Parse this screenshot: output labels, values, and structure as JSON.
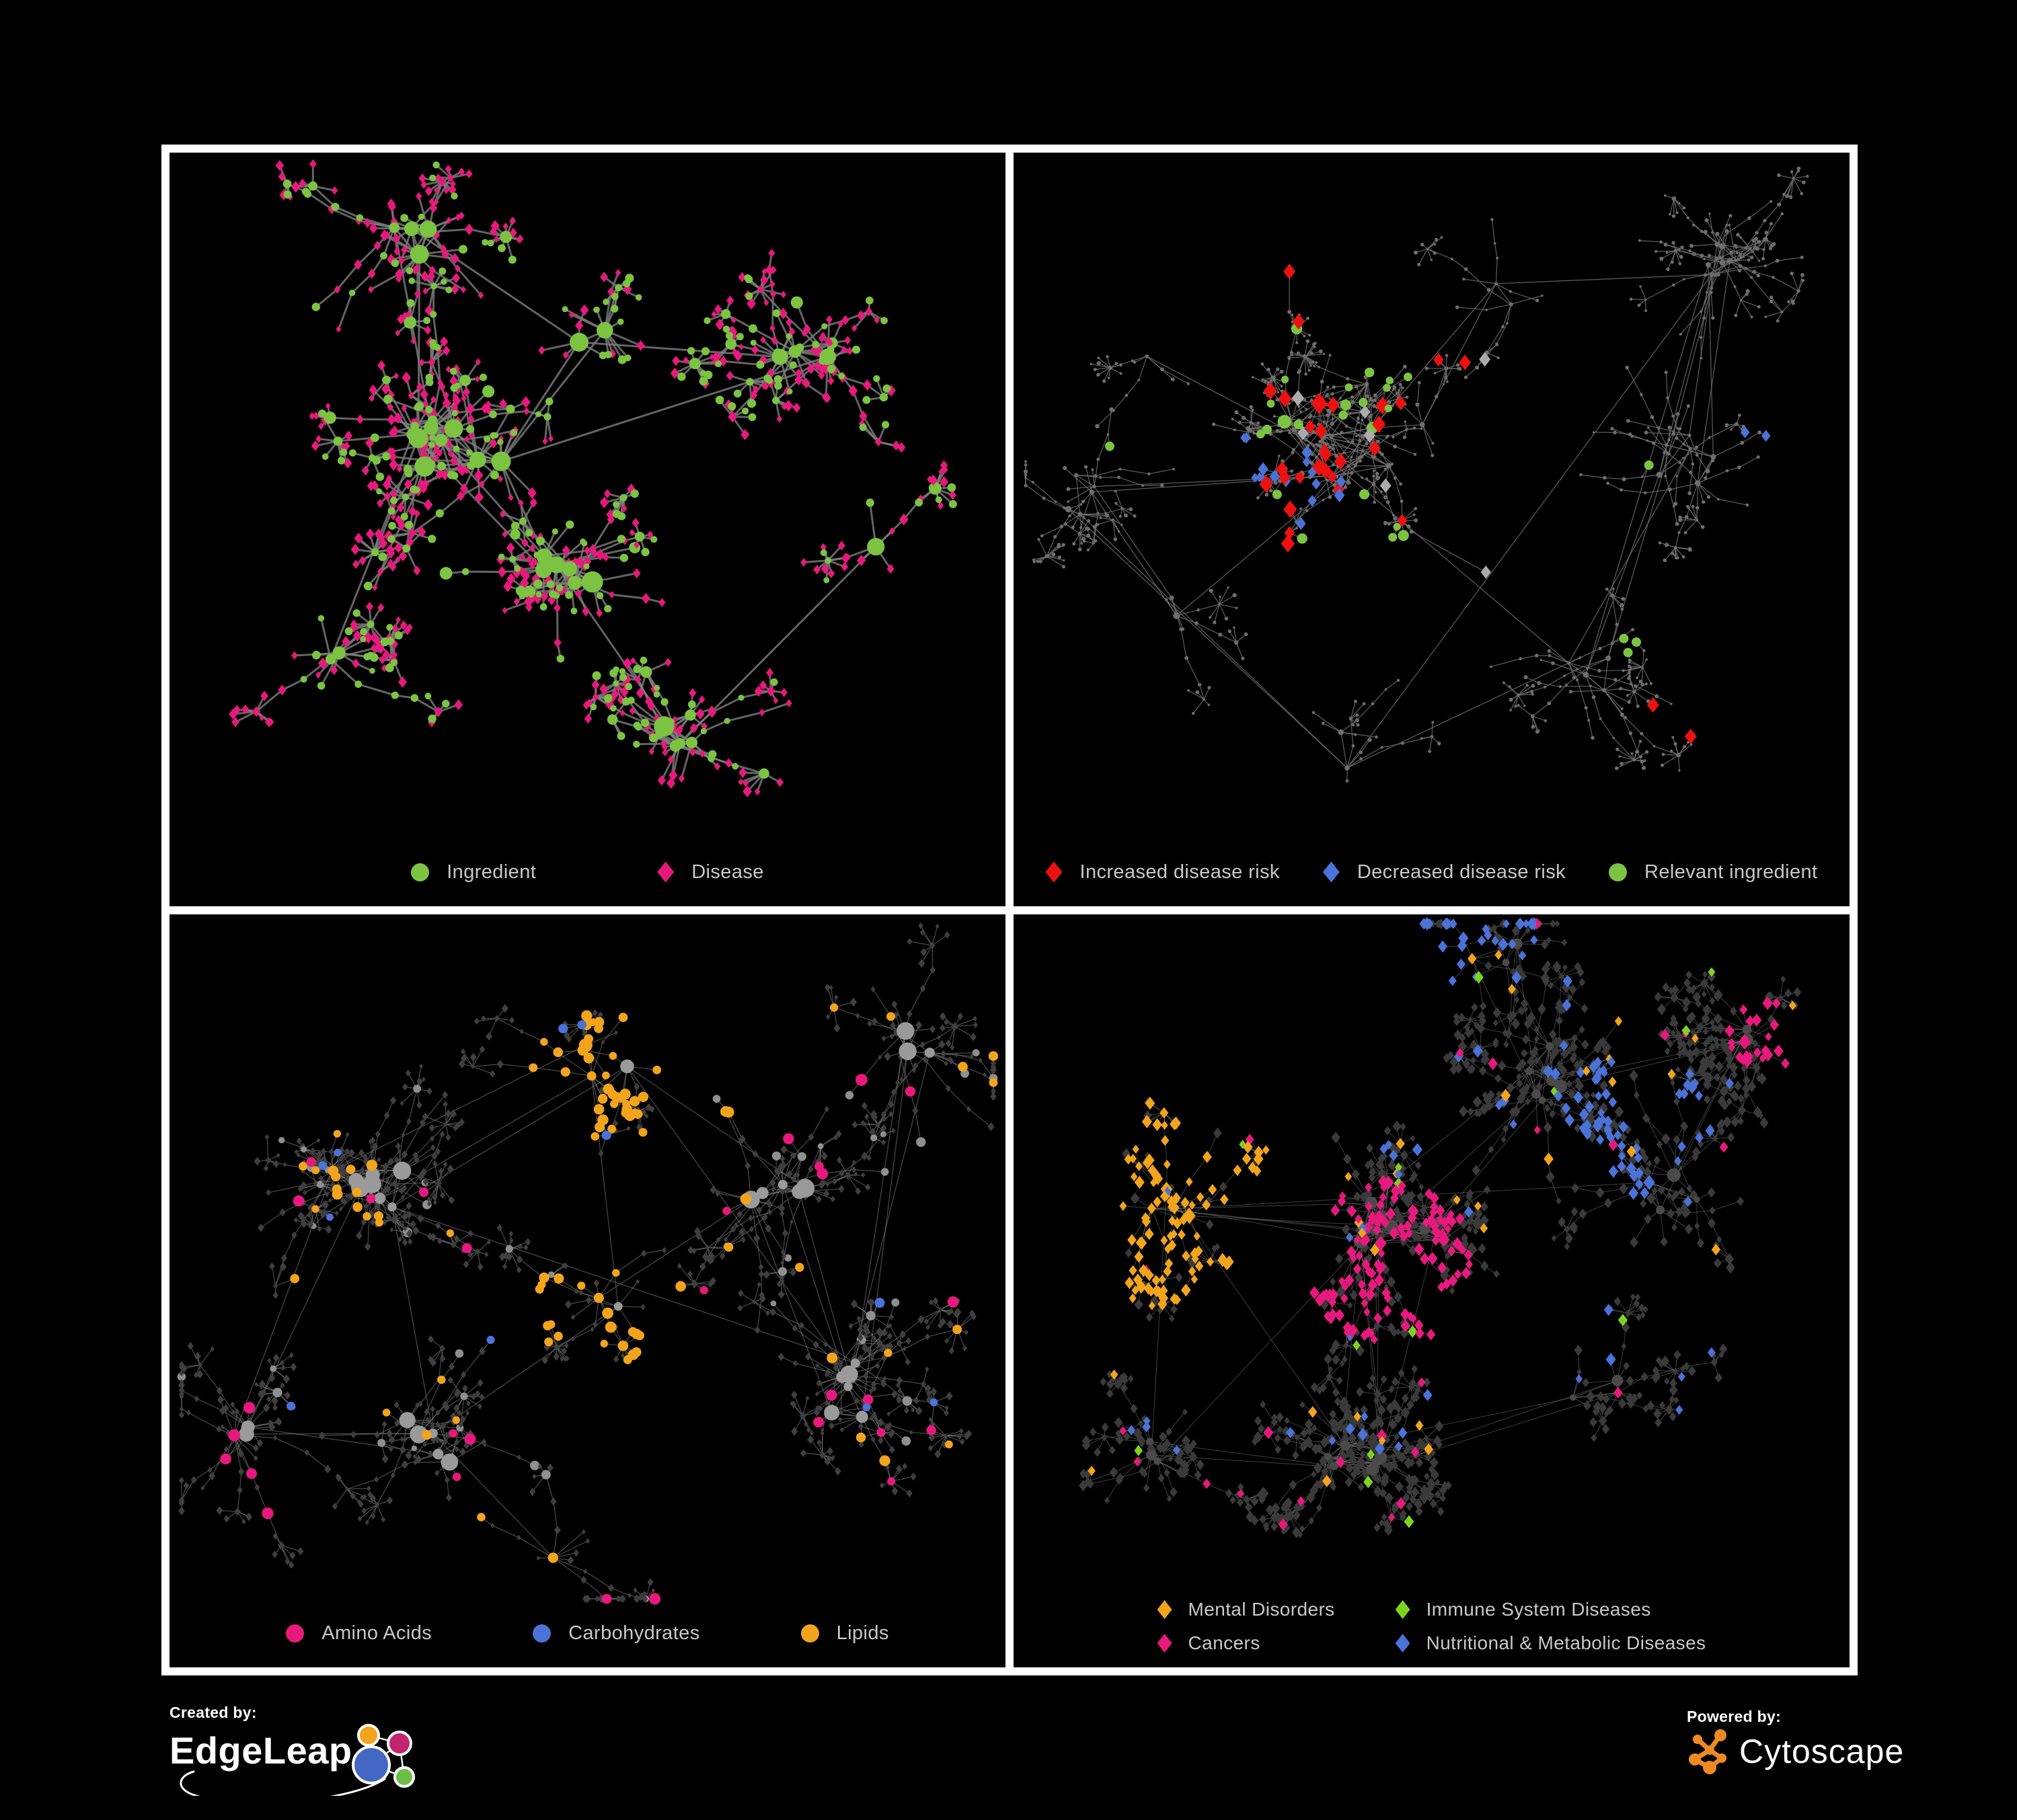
{
  "figure": {
    "background": "#000000",
    "frame_color": "#ffffff",
    "legend_text_color": "#c8c8c8"
  },
  "panels": [
    {
      "name": "ingredient-disease-network",
      "legend": {
        "items": [
          {
            "label": "Ingredient",
            "shape": "circle",
            "color": "#7CC342"
          },
          {
            "label": "Disease",
            "shape": "diamond",
            "color": "#E8197D"
          }
        ]
      },
      "network": {
        "edge": {
          "color": "#7d7d7d",
          "width": 3,
          "opacity": 0.8
        },
        "base": {
          "hub": {
            "shape": "circle",
            "color": "#7CC342",
            "size": 10
          },
          "mid": {
            "shape": "circle",
            "color": "#7CC342",
            "size": 7
          },
          "leaf": {
            "shape": "diamond",
            "color": "#E8197D",
            "size": 6
          }
        },
        "highlights": {
          "ing": {
            "shape": "circle",
            "color": "#7CC342",
            "size": 5.5
          }
        }
      }
    },
    {
      "name": "disease-risk-network",
      "legend": {
        "items": [
          {
            "label": "Increased disease risk",
            "shape": "diamond",
            "color": "#EE1111"
          },
          {
            "label": "Decreased disease risk",
            "shape": "diamond",
            "color": "#4A72D8"
          },
          {
            "label": "Relevant ingredient",
            "shape": "circle",
            "color": "#7CC342"
          }
        ]
      },
      "network": {
        "edge": {
          "color": "#6e6e6e",
          "width": 1.3,
          "opacity": 0.8
        },
        "base": {
          "hub": {
            "shape": "circle",
            "color": "#6e6e6e",
            "size": 3.2
          },
          "mid": {
            "shape": "circle",
            "color": "#6e6e6e",
            "size": 2.6
          },
          "leaf": {
            "shape": "circle",
            "color": "#6e6e6e",
            "size": 2.3
          }
        },
        "highlights": {
          "red": {
            "shape": "diamond",
            "color": "#EE1111",
            "size": 10.5
          },
          "blue": {
            "shape": "diamond",
            "color": "#4A72D8",
            "size": 8
          },
          "gray": {
            "shape": "diamond",
            "color": "#ABABAB",
            "size": 9
          },
          "green": {
            "shape": "circle",
            "color": "#7CC342",
            "size": 7
          }
        }
      }
    },
    {
      "name": "macronutrient-network",
      "legend": {
        "items": [
          {
            "label": "Amino Acids",
            "shape": "circle",
            "color": "#E8197D"
          },
          {
            "label": "Carbohydrates",
            "shape": "circle",
            "color": "#4A72D8"
          },
          {
            "label": "Lipids",
            "shape": "circle",
            "color": "#F2A41C"
          }
        ]
      },
      "network": {
        "edge": {
          "color": "#8a8a8a",
          "width": 1.3,
          "opacity": 0.5
        },
        "base": {
          "hub": {
            "shape": "circle",
            "color": "#9a9a9a",
            "size": 9
          },
          "mid": {
            "shape": "circle",
            "color": "#8f8f8f",
            "size": 5.5
          },
          "leaf": {
            "shape": "diamond",
            "color": "#3f3f3f",
            "size": 4.5
          }
        },
        "highlights": {
          "amin": {
            "shape": "circle",
            "color": "#E8197D",
            "size": 7.5
          },
          "carb": {
            "shape": "circle",
            "color": "#4A72D8",
            "size": 6.5
          },
          "lip": {
            "shape": "circle",
            "color": "#F2A41C",
            "size": 7
          }
        }
      }
    },
    {
      "name": "disease-class-network",
      "legend": {
        "items": [
          {
            "label": "Mental Disorders",
            "shape": "diamond",
            "color": "#F2A41C"
          },
          {
            "label": "Immune System Diseases",
            "shape": "diamond",
            "color": "#7ED321"
          },
          {
            "label": "Cancers",
            "shape": "diamond",
            "color": "#E8197D"
          },
          {
            "label": "Nutritional & Metabolic Diseases",
            "shape": "diamond",
            "color": "#4A72D8"
          }
        ]
      },
      "network": {
        "edge": {
          "color": "#9c9c9c",
          "width": 1,
          "opacity": 0.4
        },
        "base": {
          "hub": {
            "shape": "circle",
            "color": "#4a4a4a",
            "size": 6.5
          },
          "mid": {
            "shape": "diamond",
            "color": "#3a3a3a",
            "size": 6
          },
          "leaf": {
            "shape": "diamond",
            "color": "#3a3a3a",
            "size": 6
          }
        },
        "highlights": {
          "mental": {
            "shape": "diamond",
            "color": "#F2A41C",
            "size": 7.5
          },
          "immune": {
            "shape": "diamond",
            "color": "#7ED321",
            "size": 7.5
          },
          "cancer": {
            "shape": "diamond",
            "color": "#E8197D",
            "size": 7.5
          },
          "nutri": {
            "shape": "diamond",
            "color": "#4A72D8",
            "size": 7.5
          }
        }
      }
    }
  ],
  "branding": {
    "created_by": {
      "label": "Created by:",
      "name": "EdgeLeap",
      "text_color": "#ffffff",
      "logo_colors": {
        "orange": "#F2A41C",
        "magenta": "#C2256E",
        "blue": "#4467C4",
        "green": "#6DBE45"
      }
    },
    "powered_by": {
      "label": "Powered by:",
      "name": "Cytoscape",
      "text_color": "#ffffff",
      "logo_color": "#EE8A22"
    }
  }
}
